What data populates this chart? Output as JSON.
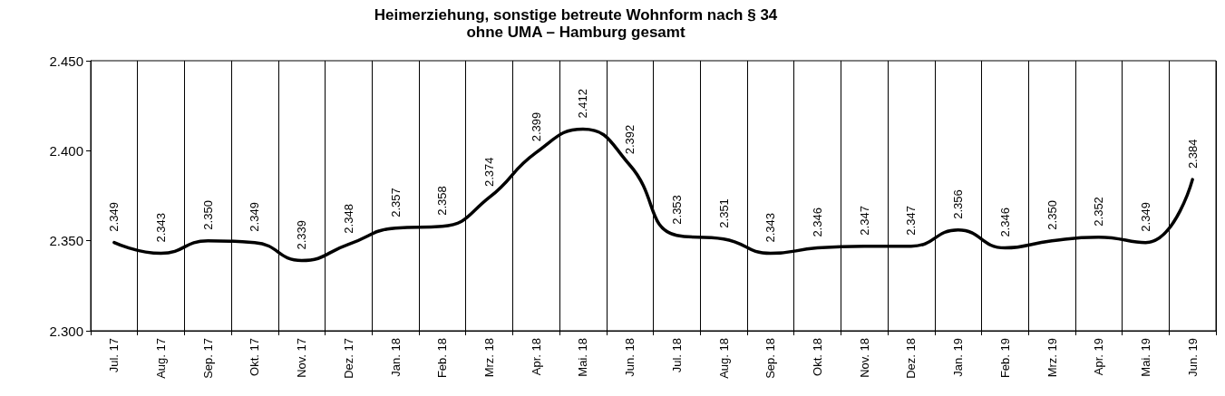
{
  "chart_data": {
    "type": "line",
    "title": "Heimerziehung, sonstige betreute Wohnform nach § 34\nohne UMA – Hamburg gesamt",
    "categories": [
      "Jul. 17",
      "Aug. 17",
      "Sep. 17",
      "Okt. 17",
      "Nov. 17",
      "Dez. 17",
      "Jan. 18",
      "Feb. 18",
      "Mrz. 18",
      "Apr. 18",
      "Mai. 18",
      "Jun. 18",
      "Jul. 18",
      "Aug. 18",
      "Sep. 18",
      "Okt. 18",
      "Nov. 18",
      "Dez. 18",
      "Jan. 19",
      "Feb. 19",
      "Mrz. 19",
      "Apr. 19",
      "Mai. 19",
      "Jun. 19"
    ],
    "series": [
      {
        "color": "#000000",
        "values": [
          2349,
          2343,
          2350,
          2349,
          2339,
          2348,
          2357,
          2358,
          2374,
          2399,
          2412,
          2392,
          2353,
          2351,
          2343,
          2346,
          2347,
          2347,
          2356,
          2346,
          2350,
          2352,
          2349,
          2384
        ],
        "value_labels": [
          "2.349",
          "2.343",
          "2.350",
          "2.349",
          "2.339",
          "2.348",
          "2.357",
          "2.358",
          "2.374",
          "2.399",
          "2.412",
          "2.392",
          "2.353",
          "2.351",
          "2.343",
          "2.346",
          "2.347",
          "2.347",
          "2.356",
          "2.346",
          "2.350",
          "2.352",
          "2.349",
          "2.384"
        ]
      }
    ],
    "ylim": [
      2300,
      2450
    ],
    "yticks": [
      {
        "value": 2300,
        "label": "2.300"
      },
      {
        "value": 2350,
        "label": "2.350"
      },
      {
        "value": 2400,
        "label": "2.400"
      },
      {
        "value": 2450,
        "label": "2.450"
      }
    ],
    "grid": "x",
    "marker": "none",
    "line_style": "solid"
  }
}
